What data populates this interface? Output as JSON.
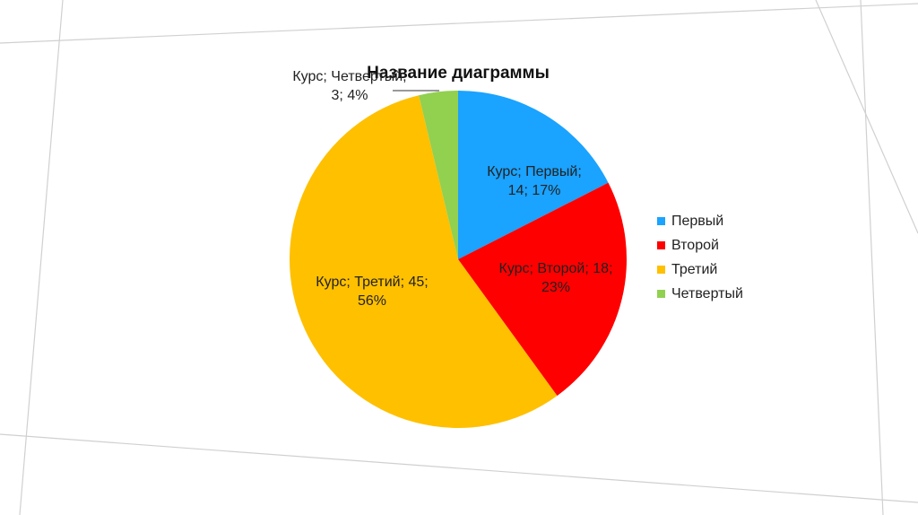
{
  "chart_data": {
    "type": "pie",
    "title": "Название диаграммы",
    "categories": [
      "Первый",
      "Второй",
      "Третий",
      "Четвертый"
    ],
    "values": [
      14,
      18,
      45,
      3
    ],
    "value_labels": [
      "Курс; Первый; 14; 17%",
      "Курс; Второй; 18; 23%",
      "Курс; Третий; 45; 56%",
      "Курс; Четвертый; 3; 4%"
    ],
    "colors": [
      "#1aa3ff",
      "#ff0000",
      "#ffc000",
      "#92d050"
    ],
    "legend": "right"
  }
}
